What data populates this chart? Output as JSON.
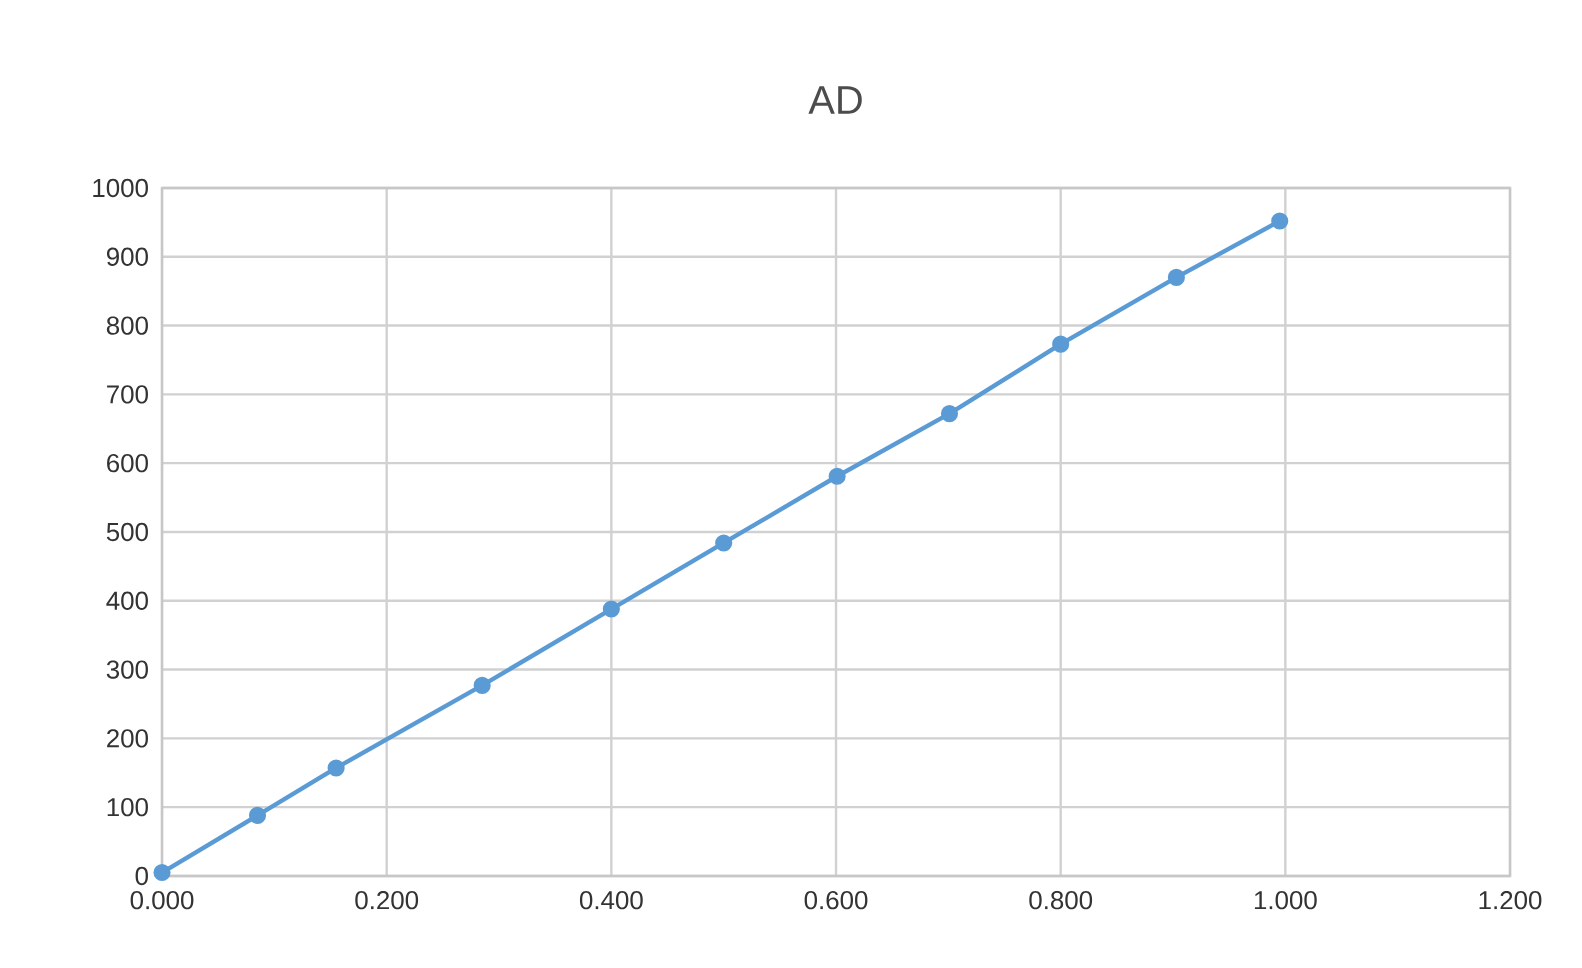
{
  "chart_data": {
    "type": "line",
    "title": "AD",
    "x": [
      0.0,
      0.085,
      0.155,
      0.285,
      0.4,
      0.5,
      0.601,
      0.701,
      0.8,
      0.903,
      0.995
    ],
    "series": [
      {
        "color": "#5b9bd5",
        "values": [
          5,
          88,
          157,
          277,
          388,
          484,
          581,
          672,
          773,
          870,
          952
        ]
      }
    ],
    "xlim": [
      0,
      1.2
    ],
    "xticks": [
      {
        "value": 0,
        "label": "0.000"
      },
      {
        "value": 0.2,
        "label": "0.200"
      },
      {
        "value": 0.4,
        "label": "0.400"
      },
      {
        "value": 0.6,
        "label": "0.600"
      },
      {
        "value": 0.8,
        "label": "0.800"
      },
      {
        "value": 1.0,
        "label": "1.000"
      },
      {
        "value": 1.2,
        "label": "1.200"
      }
    ],
    "ylim": [
      0,
      1000
    ],
    "yticks": [
      0,
      100,
      200,
      300,
      400,
      500,
      600,
      700,
      800,
      900,
      1000
    ],
    "grid": true,
    "marker": "circle",
    "line_style": "solid"
  }
}
